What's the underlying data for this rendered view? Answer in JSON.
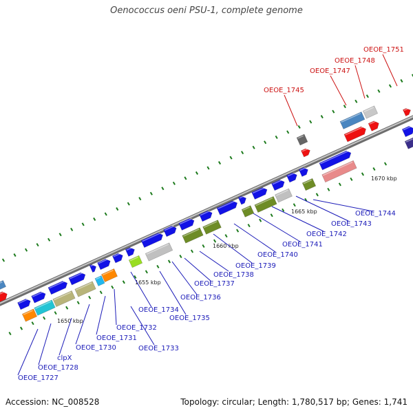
{
  "title": "Oenococcus oeni PSU-1, complete genome",
  "footer": {
    "accession": "Accession: NC_008528",
    "summary": "Topology: circular; Length: 1,780,517 bp; Genes: 1,741"
  },
  "colors": {
    "backbone": "#8c8c8c",
    "ticks": "#1c7a1c",
    "cds": "#1010e8",
    "label_blue": "#1a1ab8",
    "label_red": "#cc1111"
  },
  "kbp_marks": [
    "1650 kbp",
    "1655 kbp",
    "1660 kbp",
    "1665 kbp",
    "1670 kbp"
  ],
  "gene_labels_blue": [
    "OEOE_1727",
    "OEOE_1728",
    "clpX",
    "OEOE_1730",
    "OEOE_1731",
    "OEOE_1732",
    "OEOE_1733",
    "OEOE_1734",
    "OEOE_1735",
    "OEOE_1736",
    "OEOE_1737",
    "OEOE_1738",
    "OEOE_1739",
    "OEOE_1740",
    "OEOE_1741",
    "OEOE_1742",
    "OEOE_1743",
    "OEOE_1744"
  ],
  "gene_labels_red": [
    "OEOE_1745",
    "OEOE_1747",
    "OEOE_1748",
    "OEOE_1751"
  ]
}
